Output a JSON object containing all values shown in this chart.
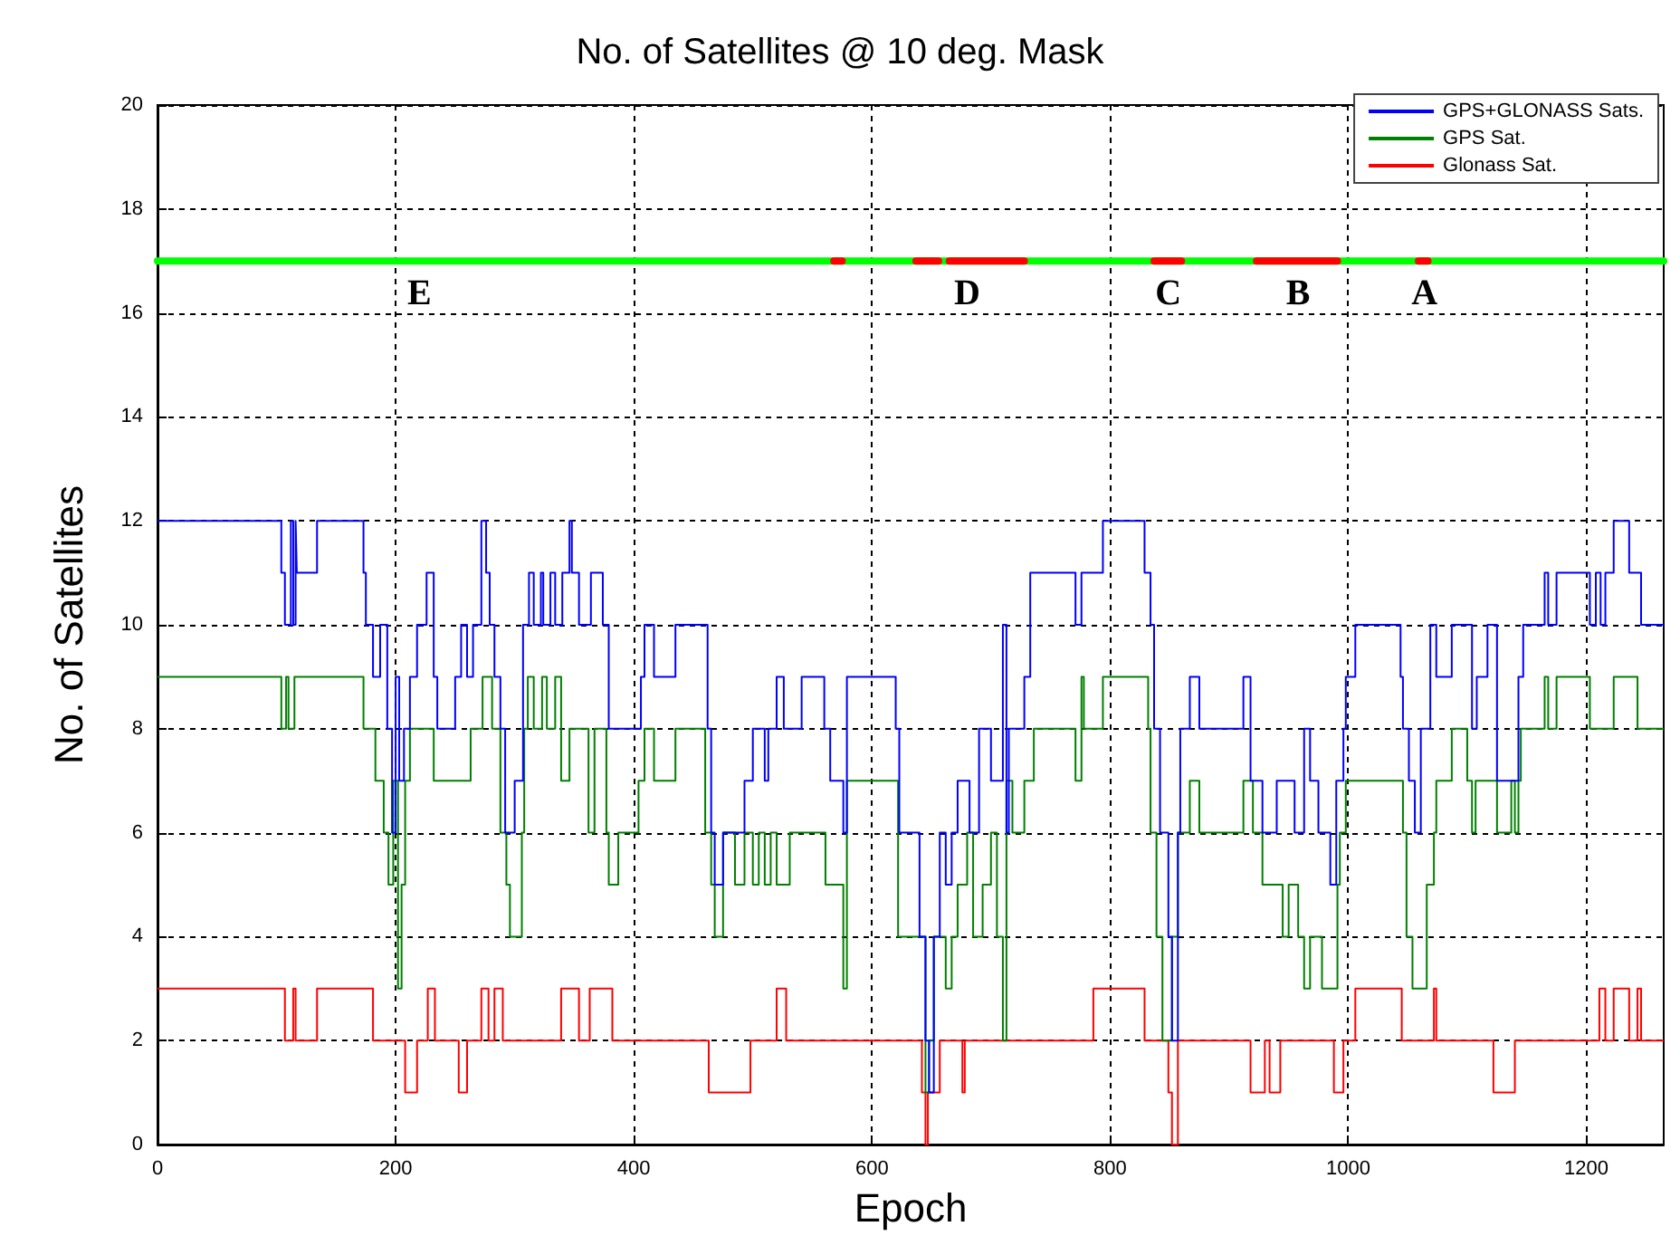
{
  "chart_data": {
    "type": "step",
    "title": "No. of Satellites @ 10 deg. Mask",
    "xlabel": "Epoch",
    "ylabel": "No. of Satellites",
    "xlim": [
      0,
      1265
    ],
    "xticks": [
      0,
      200,
      400,
      600,
      800,
      1000,
      1200
    ],
    "ylim": [
      0,
      20
    ],
    "yticks": [
      0,
      2,
      4,
      6,
      8,
      10,
      12,
      14,
      16,
      18,
      20
    ],
    "grid": true,
    "legend": "top right",
    "series": [
      {
        "name": "GPS+GLONASS Sats.",
        "color": "#0000ff",
        "x": [
          0,
          104,
          107,
          112,
          114,
          116,
          117,
          134,
          173,
          175,
          181,
          187,
          193,
          197,
          200,
          203,
          207,
          212,
          218,
          226,
          232,
          235,
          250,
          255,
          260,
          265,
          272,
          276,
          279,
          283,
          288,
          292,
          300,
          307,
          312,
          316,
          322,
          324,
          330,
          334,
          340,
          346,
          348,
          354,
          364,
          374,
          379,
          406,
          409,
          417,
          435,
          462,
          465,
          468,
          475,
          493,
          500,
          510,
          513,
          520,
          526,
          541,
          560,
          565,
          576,
          579,
          620,
          623,
          640,
          645,
          648,
          652,
          657,
          662,
          667,
          672,
          682,
          690,
          700,
          710,
          713,
          715,
          728,
          733,
          771,
          776,
          794,
          829,
          834,
          837,
          842,
          849,
          852,
          857,
          859,
          867,
          875,
          912,
          918,
          928,
          940,
          955,
          963,
          968,
          975,
          985,
          990,
          996,
          998,
          1006,
          1044,
          1046,
          1051,
          1056,
          1061,
          1069,
          1074,
          1087,
          1104,
          1108,
          1117,
          1125,
          1143,
          1147,
          1165,
          1168,
          1175,
          1203,
          1208,
          1212,
          1216,
          1223,
          1236,
          1246,
          1265
        ],
        "values": [
          12,
          11,
          10,
          12,
          10,
          12,
          11,
          12,
          11,
          10,
          9,
          10,
          8,
          6,
          9,
          7,
          8,
          9,
          10,
          11,
          9,
          8,
          9,
          10,
          9,
          10,
          12,
          11,
          10,
          9,
          8,
          6,
          7,
          10,
          11,
          10,
          11,
          10,
          11,
          10,
          11,
          12,
          11,
          10,
          11,
          10,
          8,
          9,
          10,
          9,
          10,
          8,
          6,
          5,
          6,
          7,
          8,
          7,
          8,
          9,
          8,
          9,
          8,
          7,
          6,
          9,
          8,
          6,
          4,
          2,
          1,
          4,
          6,
          5,
          6,
          7,
          6,
          8,
          7,
          10,
          6,
          8,
          9,
          11,
          10,
          11,
          12,
          11,
          10,
          8,
          6,
          4,
          2,
          6,
          8,
          9,
          8,
          9,
          7,
          6,
          7,
          6,
          8,
          7,
          6,
          5,
          7,
          8,
          9,
          10,
          9,
          8,
          7,
          6,
          8,
          10,
          9,
          10,
          8,
          9,
          10,
          7,
          9,
          10,
          11,
          10,
          11,
          10,
          11,
          10,
          11,
          12,
          11,
          10,
          10
        ]
      },
      {
        "name": "GPS Sat.",
        "color": "#008000",
        "x": [
          0,
          104,
          108,
          110,
          115,
          173,
          183,
          190,
          194,
          198,
          202,
          205,
          208,
          212,
          232,
          263,
          273,
          281,
          288,
          293,
          296,
          306,
          308,
          311,
          316,
          323,
          327,
          334,
          339,
          346,
          362,
          367,
          377,
          379,
          387,
          404,
          409,
          417,
          435,
          460,
          465,
          468,
          475,
          485,
          493,
          500,
          505,
          510,
          515,
          520,
          531,
          561,
          576,
          579,
          622,
          645,
          648,
          652,
          662,
          667,
          672,
          680,
          685,
          693,
          700,
          705,
          710,
          713,
          718,
          728,
          736,
          771,
          776,
          778,
          794,
          832,
          834,
          839,
          844,
          852,
          857,
          867,
          875,
          912,
          920,
          928,
          945,
          950,
          958,
          963,
          968,
          978,
          991,
          993,
          998,
          1046,
          1049,
          1054,
          1066,
          1072,
          1074,
          1087,
          1100,
          1104,
          1107,
          1125,
          1137,
          1140,
          1143,
          1145,
          1165,
          1168,
          1175,
          1203,
          1223,
          1243,
          1265
        ],
        "values": [
          9,
          8,
          9,
          8,
          9,
          8,
          7,
          6,
          5,
          7,
          3,
          5,
          7,
          8,
          7,
          8,
          9,
          8,
          6,
          5,
          4,
          6,
          8,
          9,
          8,
          9,
          8,
          9,
          7,
          8,
          6,
          8,
          6,
          5,
          6,
          7,
          8,
          7,
          8,
          6,
          5,
          4,
          6,
          5,
          6,
          5,
          6,
          5,
          6,
          5,
          6,
          5,
          3,
          7,
          4,
          1,
          2,
          4,
          3,
          4,
          5,
          6,
          4,
          5,
          6,
          4,
          2,
          7,
          6,
          7,
          8,
          7,
          9,
          8,
          9,
          8,
          6,
          4,
          2,
          4,
          6,
          7,
          6,
          7,
          6,
          5,
          4,
          5,
          4,
          3,
          4,
          3,
          5,
          6,
          7,
          6,
          4,
          3,
          5,
          6,
          7,
          8,
          7,
          6,
          7,
          6,
          7,
          6,
          7,
          8,
          9,
          8,
          9,
          8,
          9,
          8,
          8
        ]
      },
      {
        "name": "Glonass Sat.",
        "color": "#ff0000",
        "x": [
          0,
          107,
          114,
          116,
          134,
          181,
          208,
          218,
          227,
          233,
          253,
          260,
          272,
          278,
          283,
          290,
          339,
          354,
          363,
          382,
          463,
          498,
          520,
          528,
          642,
          645,
          647,
          657,
          676,
          678,
          786,
          829,
          849,
          852,
          857,
          918,
          930,
          934,
          943,
          988,
          996,
          1006,
          1045,
          1072,
          1074,
          1122,
          1140,
          1211,
          1216,
          1223,
          1236,
          1243,
          1246,
          1265
        ],
        "values": [
          3,
          2,
          3,
          2,
          3,
          2,
          1,
          2,
          3,
          2,
          1,
          2,
          3,
          2,
          3,
          2,
          3,
          2,
          3,
          2,
          1,
          2,
          3,
          2,
          1,
          0,
          1,
          2,
          1,
          2,
          3,
          2,
          1,
          0,
          2,
          1,
          2,
          1,
          2,
          1,
          2,
          3,
          2,
          3,
          2,
          1,
          2,
          3,
          2,
          3,
          2,
          3,
          2,
          2
        ]
      },
      {
        "type": "line",
        "color": "#00ff00",
        "x": [
          0,
          1265
        ],
        "values": [
          17,
          17
        ]
      },
      {
        "type": "line",
        "color": "#ff0000",
        "x": [
          568,
          575,
          576,
          637,
          656,
          657,
          665,
          728,
          729,
          837,
          860,
          861,
          923,
          991,
          992,
          1059,
          1067
        ],
        "values": [
          17,
          17,
          null,
          17,
          17,
          null,
          17,
          17,
          null,
          17,
          17,
          null,
          17,
          17,
          null,
          17,
          17
        ]
      }
    ],
    "annotations": [
      {
        "text": "E",
        "x": 220,
        "y": 17
      },
      {
        "text": "D",
        "x": 680,
        "y": 17
      },
      {
        "text": "C",
        "x": 849,
        "y": 17
      },
      {
        "text": "B",
        "x": 958,
        "y": 17
      },
      {
        "text": "A",
        "x": 1064,
        "y": 17
      }
    ]
  }
}
